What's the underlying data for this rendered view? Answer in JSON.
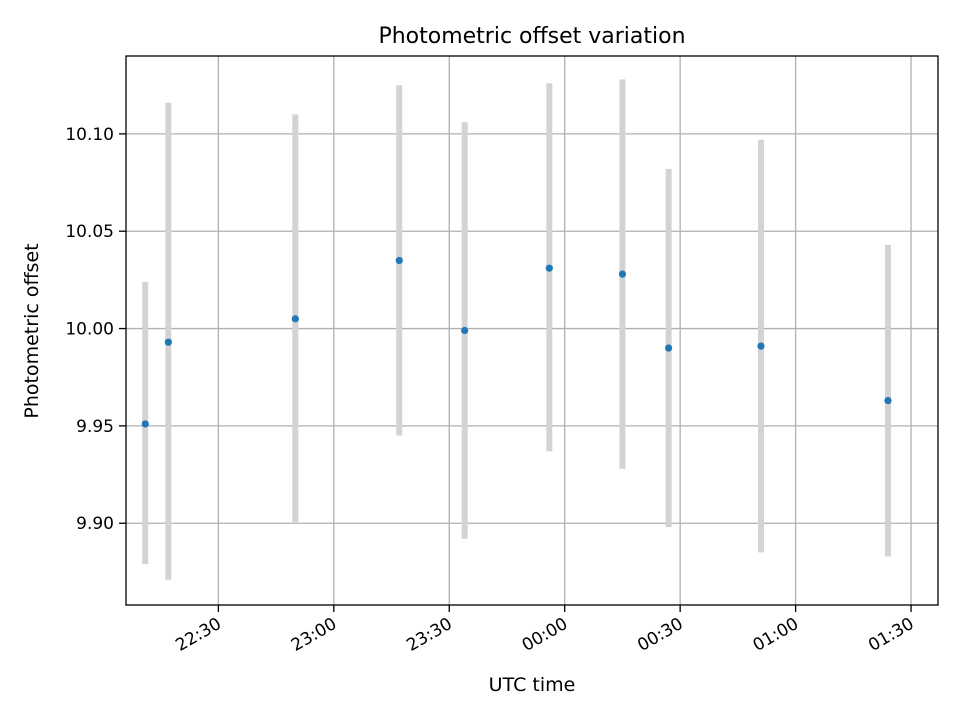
{
  "chart_data": {
    "type": "scatter",
    "title": "Photometric offset variation",
    "xlabel": "UTC time",
    "ylabel": "Photometric offset",
    "x_ticks": [
      "22:30",
      "23:00",
      "23:30",
      "00:00",
      "00:30",
      "01:00",
      "01:30"
    ],
    "y_ticks": [
      "9.90",
      "9.95",
      "10.00",
      "10.05",
      "10.10"
    ],
    "x_axis": {
      "type": "time",
      "start": "2000-01-01 22:30",
      "tick_interval_minutes": 30,
      "range": [
        "22:06",
        "01:37"
      ]
    },
    "ylim": [
      9.858,
      10.14
    ],
    "grid": true,
    "colors": {
      "point": "#1f77b4",
      "errorbar": "#d3d3d3",
      "grid": "#b0b0b0"
    },
    "points": [
      {
        "time": "22:11",
        "y": 9.951,
        "err_low": 9.879,
        "err_high": 10.024
      },
      {
        "time": "22:17",
        "y": 9.993,
        "err_low": 9.871,
        "err_high": 10.116
      },
      {
        "time": "22:50",
        "y": 10.005,
        "err_low": 9.9,
        "err_high": 10.11
      },
      {
        "time": "23:17",
        "y": 10.035,
        "err_low": 9.945,
        "err_high": 10.125
      },
      {
        "time": "23:34",
        "y": 9.999,
        "err_low": 9.892,
        "err_high": 10.106
      },
      {
        "time": "23:56",
        "y": 10.031,
        "err_low": 9.937,
        "err_high": 10.126
      },
      {
        "time": "00:15",
        "y": 10.028,
        "err_low": 9.928,
        "err_high": 10.128
      },
      {
        "time": "00:27",
        "y": 9.99,
        "err_low": 9.898,
        "err_high": 10.082
      },
      {
        "time": "00:51",
        "y": 9.991,
        "err_low": 9.885,
        "err_high": 10.097
      },
      {
        "time": "01:24",
        "y": 9.963,
        "err_low": 9.883,
        "err_high": 10.043
      }
    ]
  }
}
